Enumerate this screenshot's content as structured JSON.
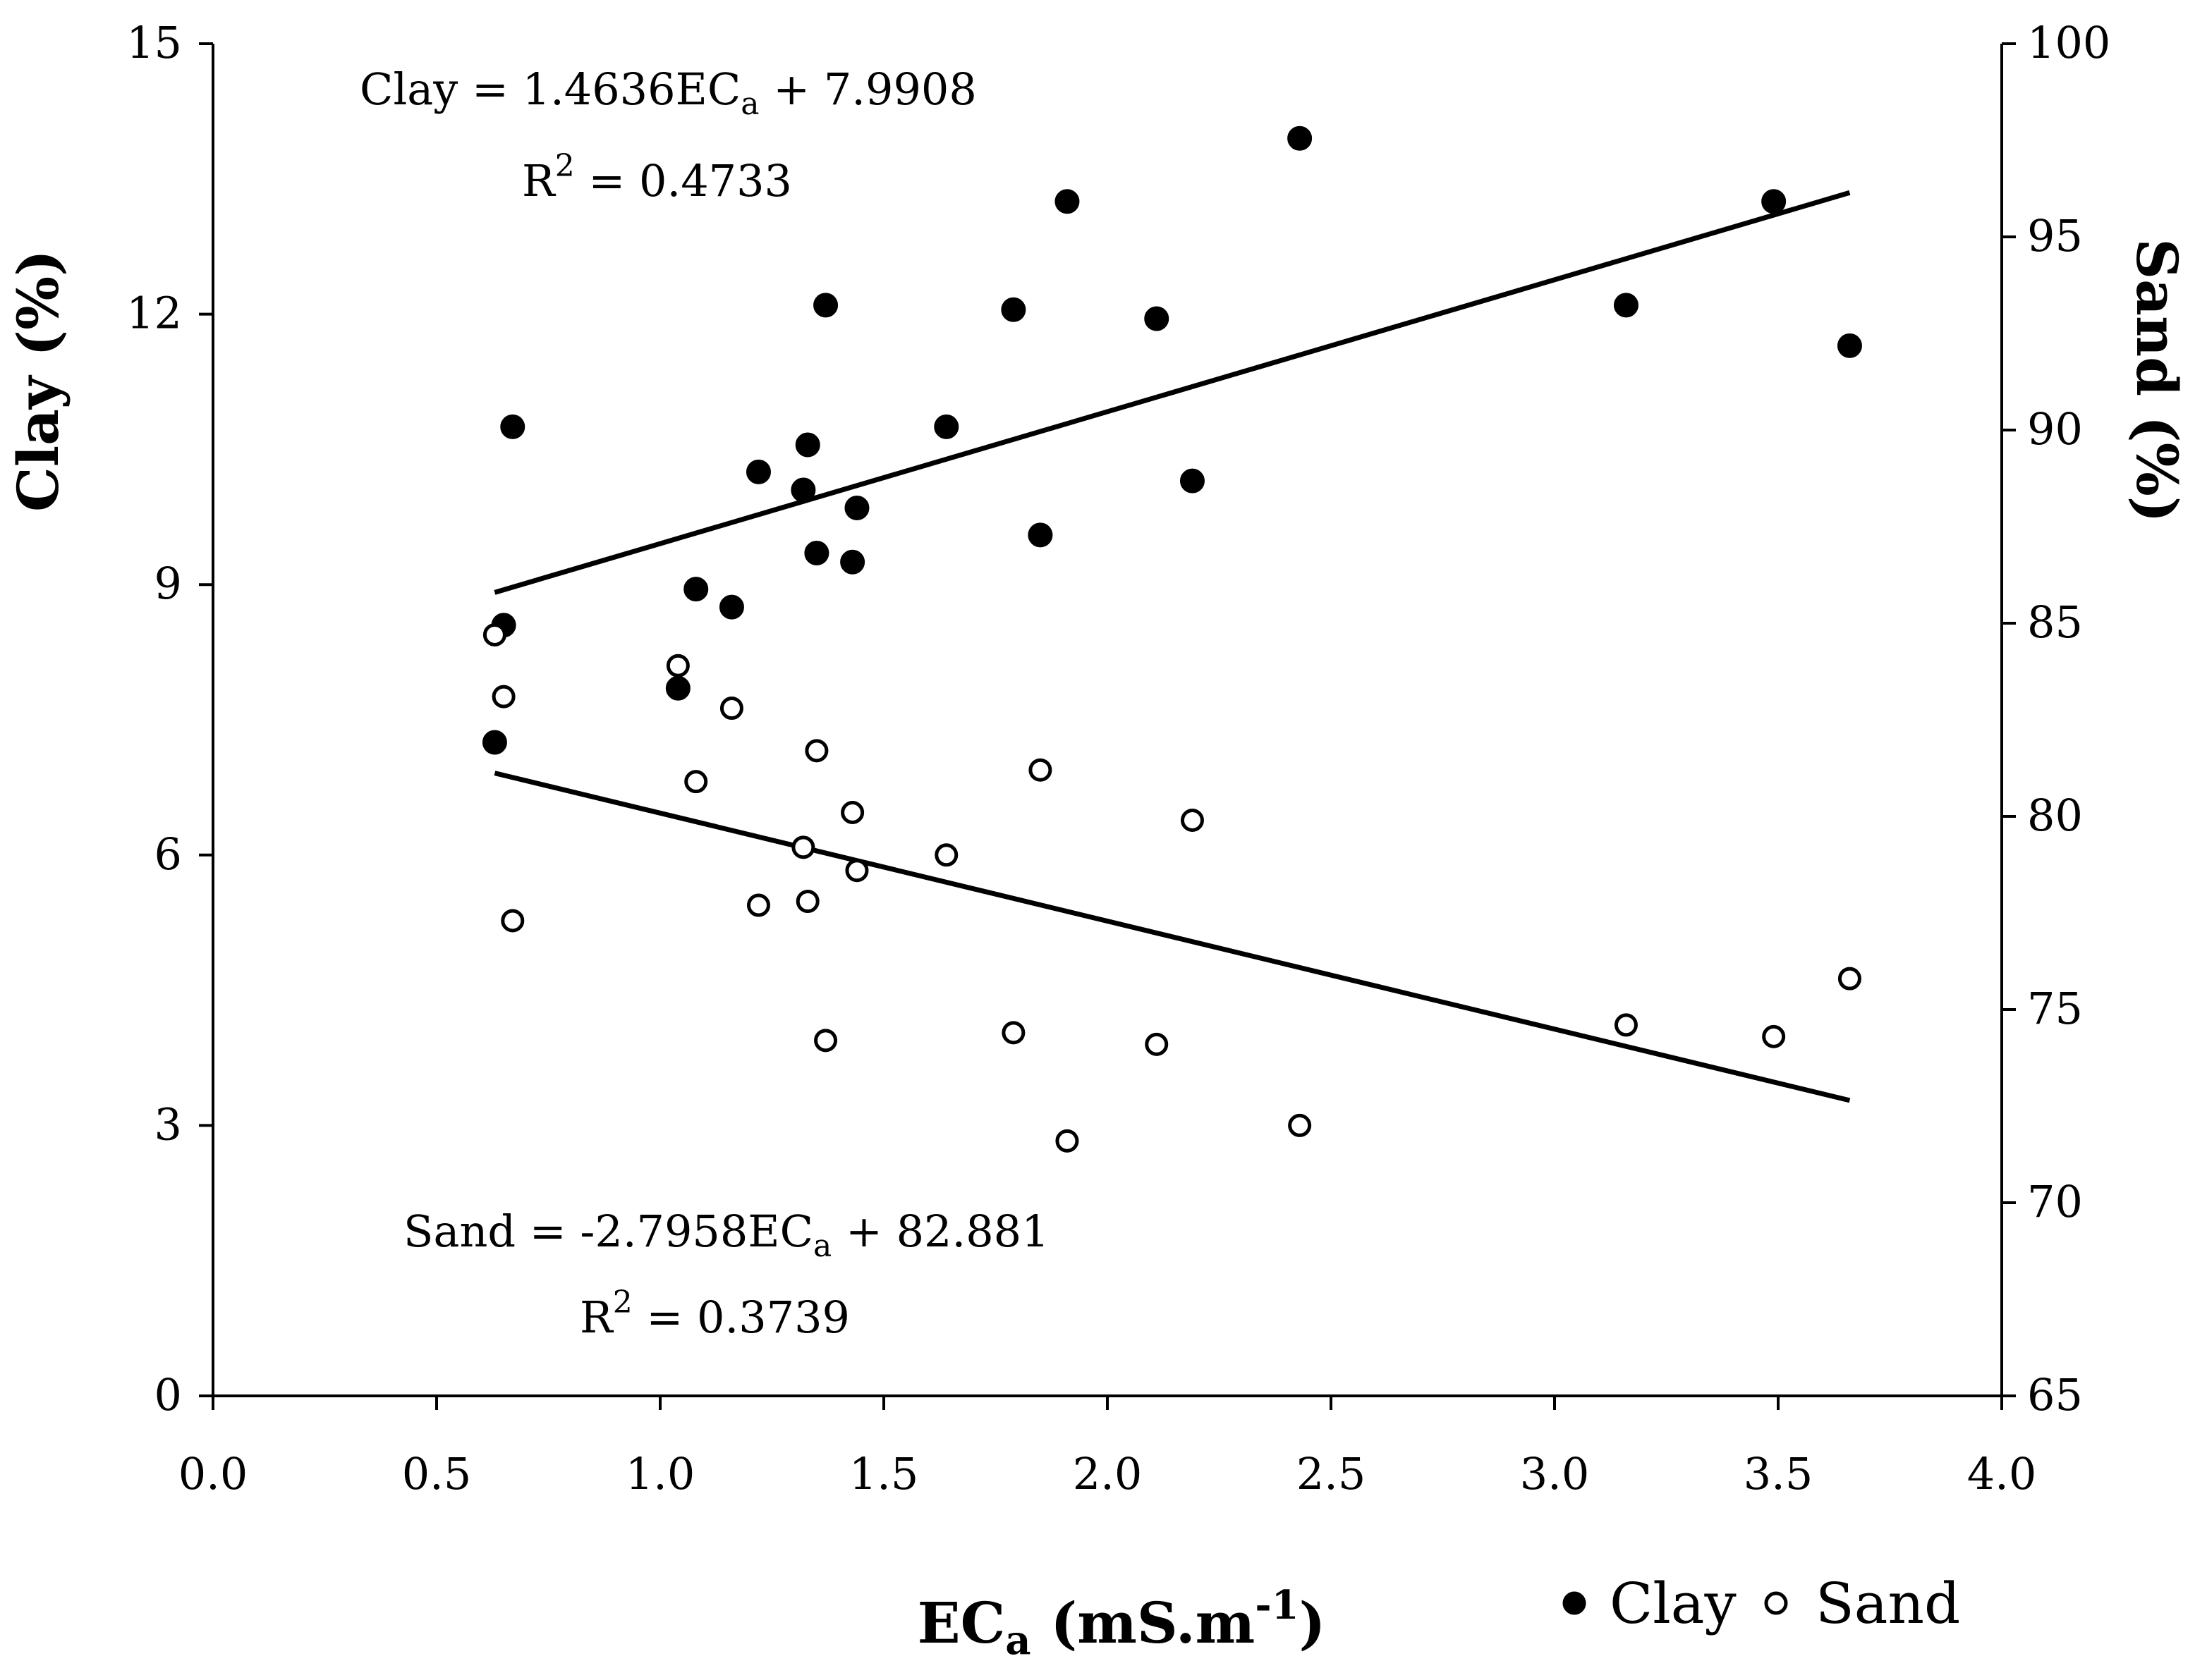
{
  "chart_data": {
    "type": "scatter",
    "title": "",
    "xlabel": {
      "main": "EC",
      "sub": "a",
      "rest": " (mS.m",
      "sup": "-1",
      "close": ")"
    },
    "ylabel_left": "Clay (%)",
    "ylabel_right": "Sand (%)",
    "xlim": [
      0.0,
      4.0
    ],
    "ylim_left": [
      0,
      15
    ],
    "ylim_right": [
      65,
      100
    ],
    "x_ticks": [
      "0.0",
      "0.5",
      "1.0",
      "1.5",
      "2.0",
      "2.5",
      "3.0",
      "3.5",
      "4.0"
    ],
    "y_left_ticks": [
      "0",
      "3",
      "6",
      "9",
      "12",
      "15"
    ],
    "y_right_ticks": [
      "65",
      "70",
      "75",
      "80",
      "85",
      "90",
      "95",
      "100"
    ],
    "legend_position": "bottom-right",
    "series": [
      {
        "name": "Clay",
        "axis": "left",
        "marker": "filled-circle",
        "points": [
          [
            0.63,
            7.25
          ],
          [
            0.65,
            8.55
          ],
          [
            0.67,
            10.75
          ],
          [
            1.04,
            7.85
          ],
          [
            1.08,
            8.95
          ],
          [
            1.16,
            8.75
          ],
          [
            1.22,
            10.25
          ],
          [
            1.32,
            10.05
          ],
          [
            1.33,
            10.55
          ],
          [
            1.35,
            9.35
          ],
          [
            1.37,
            12.1
          ],
          [
            1.43,
            9.25
          ],
          [
            1.44,
            9.85
          ],
          [
            1.64,
            10.75
          ],
          [
            1.79,
            12.05
          ],
          [
            1.85,
            9.55
          ],
          [
            1.91,
            13.25
          ],
          [
            2.11,
            11.95
          ],
          [
            2.19,
            10.15
          ],
          [
            2.43,
            13.95
          ],
          [
            3.16,
            12.1
          ],
          [
            3.49,
            13.25
          ],
          [
            3.66,
            11.65
          ]
        ],
        "trendline": {
          "slope": 1.4636,
          "intercept": 7.9908,
          "x_range": [
            0.63,
            3.66
          ]
        },
        "equation": {
          "lhs": "Clay = 1.4636EC",
          "sub": "a",
          "rhs": " + 7.9908"
        },
        "r2": {
          "label": "R",
          "sup": "2",
          "value": " = 0.4733"
        }
      },
      {
        "name": "Sand",
        "axis": "right",
        "marker": "open-circle",
        "points": [
          [
            0.63,
            84.7
          ],
          [
            0.65,
            83.1
          ],
          [
            0.67,
            77.3
          ],
          [
            1.04,
            83.9
          ],
          [
            1.08,
            80.9
          ],
          [
            1.16,
            82.8
          ],
          [
            1.22,
            77.7
          ],
          [
            1.32,
            79.2
          ],
          [
            1.33,
            77.8
          ],
          [
            1.35,
            81.7
          ],
          [
            1.37,
            74.2
          ],
          [
            1.43,
            80.1
          ],
          [
            1.44,
            78.6
          ],
          [
            1.64,
            79.0
          ],
          [
            1.79,
            74.4
          ],
          [
            1.85,
            81.2
          ],
          [
            1.91,
            71.6
          ],
          [
            2.11,
            74.1
          ],
          [
            2.19,
            79.9
          ],
          [
            2.43,
            72.0
          ],
          [
            3.16,
            74.6
          ],
          [
            3.49,
            74.3
          ],
          [
            3.66,
            75.8
          ]
        ],
        "trendline": {
          "slope": -2.7958,
          "intercept": 82.881,
          "x_range": [
            0.63,
            3.66
          ]
        },
        "equation": {
          "lhs": "Sand = -2.7958EC",
          "sub": "a",
          "rhs": " + 82.881"
        },
        "r2": {
          "label": "R",
          "sup": "2",
          "value": " = 0.3739"
        }
      }
    ]
  }
}
